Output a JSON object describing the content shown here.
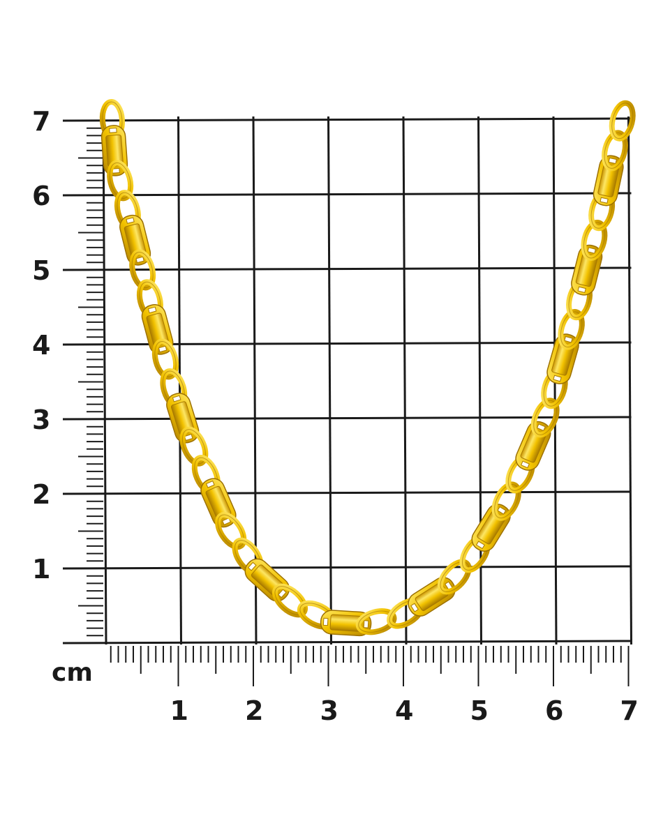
{
  "scale": {
    "unit": "cm",
    "x_labels": [
      "1",
      "2",
      "3",
      "4",
      "5",
      "6",
      "7"
    ],
    "y_labels": [
      "1",
      "2",
      "3",
      "4",
      "5",
      "6",
      "7"
    ]
  },
  "product": {
    "subject": "yellow gold fancy link chain necklace",
    "metal_color": "#f2c200",
    "highlight_color": "#fde664",
    "shadow_color": "#b58500"
  },
  "colors": {
    "background": "#ffffff",
    "grid": "#1a1a1a"
  }
}
